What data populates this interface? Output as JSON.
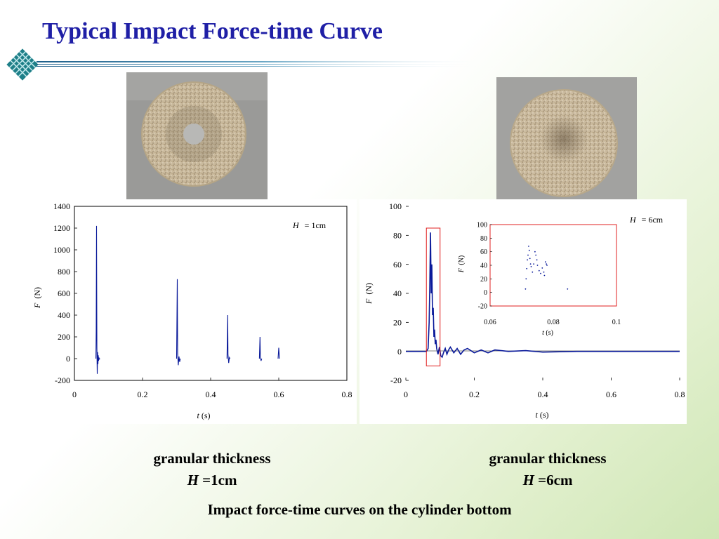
{
  "slide": {
    "title": "Typical Impact Force-time Curve",
    "colors": {
      "title": "#1f1fa6",
      "series": "#0a1a9a",
      "frame": "#e02020"
    }
  },
  "captions": {
    "left": {
      "line1": "granular thickness",
      "var": "H",
      "value": "=1cm"
    },
    "right": {
      "line1": "granular thickness",
      "var": "H",
      "value": "=6cm"
    },
    "figure": "Impact force-time curves on the cylinder bottom"
  },
  "chart_data": [
    {
      "type": "line",
      "annotation": {
        "var": "H",
        "text": "= 1cm"
      },
      "xlabel": {
        "var": "t",
        "unit": "(s)"
      },
      "ylabel": {
        "var": "F",
        "unit": "(N)"
      },
      "xlim": [
        0,
        0.8
      ],
      "ylim": [
        -200,
        1400
      ],
      "xticks": [
        0,
        0.2,
        0.4,
        0.6,
        0.8
      ],
      "xtick_labels": [
        "0",
        "0.2",
        "0.4",
        "0.6",
        "0.8"
      ],
      "yticks": [
        -200,
        0,
        200,
        400,
        600,
        800,
        1000,
        1200,
        1400
      ],
      "ytick_labels": [
        "-200",
        "0",
        "200",
        "400",
        "600",
        "800",
        "1000",
        "1200",
        "1400"
      ],
      "grid": false,
      "series": [
        {
          "x": [
            0.063,
            0.064,
            0.065,
            0.066,
            0.067,
            0.068,
            0.069,
            0.07,
            0.071,
            0.072,
            0.073,
            0.075,
            0.3,
            0.302,
            0.303,
            0.305,
            0.307,
            0.309,
            0.311,
            0.448,
            0.45,
            0.451,
            0.453,
            0.455,
            0.457,
            0.543,
            0.545,
            0.546,
            0.548,
            0.55,
            0.598,
            0.6,
            0.602,
            0.64
          ],
          "y": [
            0,
            250,
            1220,
            100,
            -140,
            60,
            -50,
            30,
            -20,
            10,
            -5,
            0,
            0,
            730,
            50,
            -60,
            20,
            -30,
            0,
            0,
            400,
            40,
            -40,
            10,
            0,
            0,
            200,
            20,
            -20,
            0,
            0,
            100,
            0,
            30
          ]
        }
      ]
    },
    {
      "type": "line",
      "annotation": {
        "var": "H",
        "text": "= 6cm"
      },
      "xlabel": {
        "var": "t",
        "unit": "(s)"
      },
      "ylabel": {
        "var": "F",
        "unit": "(N)"
      },
      "xlim": [
        0,
        0.8
      ],
      "ylim": [
        -20,
        100
      ],
      "xticks": [
        0,
        0.2,
        0.4,
        0.6,
        0.8
      ],
      "xtick_labels": [
        "0",
        "0.2",
        "0.4",
        "0.6",
        "0.8"
      ],
      "yticks": [
        -20,
        0,
        20,
        40,
        60,
        80,
        100
      ],
      "ytick_labels": [
        "-20",
        "0",
        "20",
        "40",
        "60",
        "80",
        "100"
      ],
      "grid": false,
      "series": [
        {
          "x": [
            0.0,
            0.06,
            0.065,
            0.068,
            0.07,
            0.072,
            0.074,
            0.076,
            0.078,
            0.08,
            0.082,
            0.084,
            0.086,
            0.088,
            0.09,
            0.094,
            0.098,
            0.102,
            0.106,
            0.11,
            0.115,
            0.12,
            0.125,
            0.13,
            0.14,
            0.15,
            0.16,
            0.17,
            0.18,
            0.2,
            0.22,
            0.24,
            0.26,
            0.3,
            0.35,
            0.4,
            0.5,
            0.6,
            0.7,
            0.8
          ],
          "y": [
            0,
            0,
            2,
            20,
            45,
            82,
            40,
            60,
            25,
            30,
            10,
            15,
            5,
            8,
            2,
            -2,
            3,
            -3,
            -4,
            -1,
            2,
            -2,
            1,
            3,
            -1,
            2,
            -2,
            1,
            2,
            -1,
            1,
            -1,
            1,
            0,
            0.5,
            -0.5,
            0,
            0,
            0,
            0
          ]
        }
      ],
      "inset": {
        "xlim": [
          0.06,
          0.1
        ],
        "ylim": [
          -20,
          100
        ],
        "xticks": [
          0.06,
          0.08,
          0.1
        ],
        "xtick_labels": [
          "0.06",
          "0.08",
          "0.1"
        ],
        "yticks": [
          -20,
          0,
          20,
          40,
          60,
          80,
          100
        ],
        "ytick_labels": [
          "-20",
          "0",
          "20",
          "40",
          "60",
          "80",
          "100"
        ],
        "xlabel": {
          "var": "t",
          "unit": "(s)"
        },
        "ylabel": {
          "var": "F",
          "unit": "(N)"
        },
        "points": {
          "x": [
            0.0712,
            0.0714,
            0.0716,
            0.0718,
            0.072,
            0.0722,
            0.0724,
            0.0726,
            0.0728,
            0.073,
            0.0734,
            0.0738,
            0.0742,
            0.0745,
            0.0748,
            0.075,
            0.0755,
            0.076,
            0.0765,
            0.077,
            0.0772,
            0.0775,
            0.0778,
            0.078,
            0.0845
          ],
          "y": [
            5,
            20,
            35,
            48,
            55,
            68,
            62,
            50,
            42,
            38,
            30,
            42,
            60,
            55,
            48,
            40,
            32,
            28,
            36,
            30,
            25,
            45,
            42,
            40,
            5
          ]
        },
        "highlight_range": {
          "x": [
            0.06,
            0.1
          ],
          "y": [
            -10,
            85
          ]
        }
      }
    }
  ]
}
